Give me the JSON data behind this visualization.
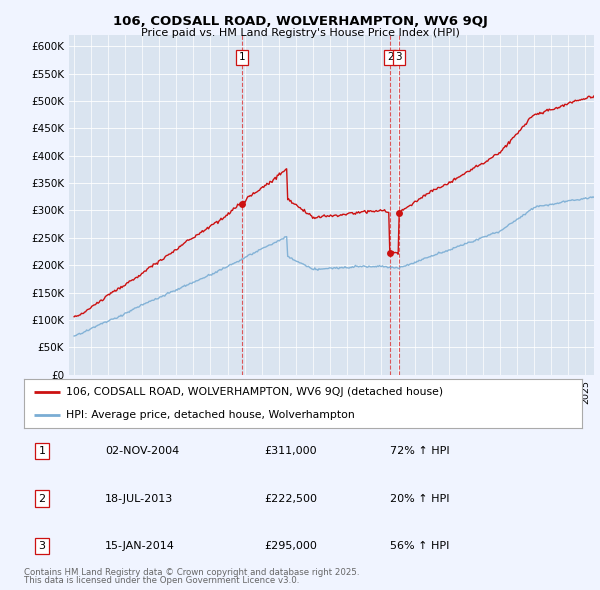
{
  "title": "106, CODSALL ROAD, WOLVERHAMPTON, WV6 9QJ",
  "subtitle": "Price paid vs. HM Land Registry's House Price Index (HPI)",
  "background_color": "#f0f4ff",
  "plot_bg_color": "#dae4f0",
  "red_line_label": "106, CODSALL ROAD, WOLVERHAMPTON, WV6 9QJ (detached house)",
  "blue_line_label": "HPI: Average price, detached house, Wolverhampton",
  "transactions": [
    {
      "id": 1,
      "date_x": 2004.84,
      "price": 311000,
      "label": "1",
      "pct": "72% ↑ HPI",
      "date_str": "02-NOV-2004"
    },
    {
      "id": 2,
      "date_x": 2013.54,
      "price": 222500,
      "label": "2",
      "pct": "20% ↑ HPI",
      "date_str": "18-JUL-2013"
    },
    {
      "id": 3,
      "date_x": 2014.04,
      "price": 295000,
      "label": "3",
      "pct": "56% ↑ HPI",
      "date_str": "15-JAN-2014"
    }
  ],
  "footer_line1": "Contains HM Land Registry data © Crown copyright and database right 2025.",
  "footer_line2": "This data is licensed under the Open Government Licence v3.0.",
  "ylim": [
    0,
    620000
  ],
  "xlim_start": 1994.7,
  "xlim_end": 2025.5,
  "table_rows": [
    [
      "1",
      "02-NOV-2004",
      "£311,000",
      "72% ↑ HPI"
    ],
    [
      "2",
      "18-JUL-2013",
      "£222,500",
      "20% ↑ HPI"
    ],
    [
      "3",
      "15-JAN-2014",
      "£295,000",
      "56% ↑ HPI"
    ]
  ]
}
